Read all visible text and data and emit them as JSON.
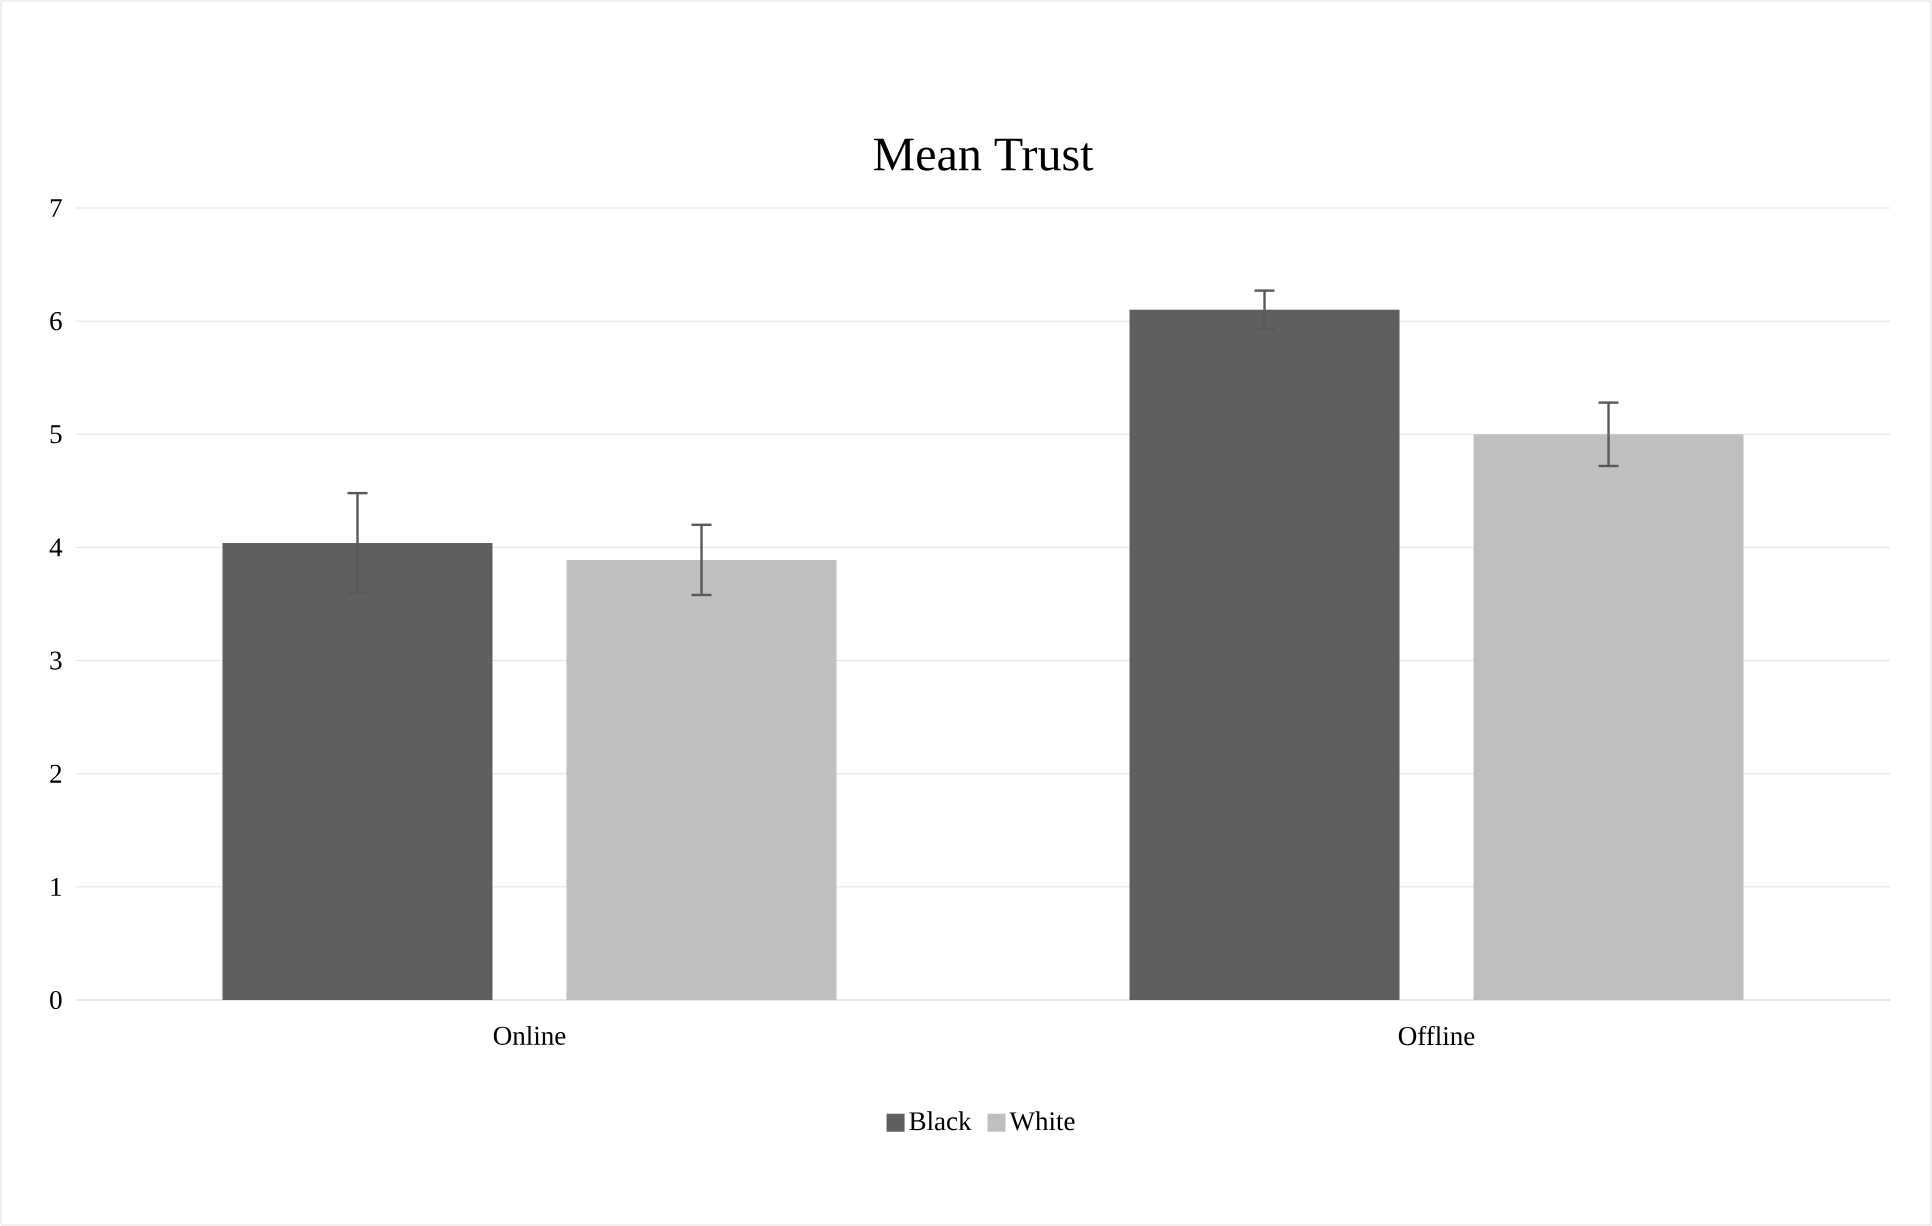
{
  "chart_data": {
    "type": "bar",
    "title": "Mean Trust",
    "categories": [
      "Online",
      "Offline"
    ],
    "series": [
      {
        "name": "Black",
        "color": "#5f5f5f",
        "values": [
          4.04,
          6.1
        ],
        "errors": [
          0.44,
          0.17
        ]
      },
      {
        "name": "White",
        "color": "#bfbfbf",
        "values": [
          3.89,
          5.0
        ],
        "errors": [
          0.31,
          0.28
        ]
      }
    ],
    "ylim": [
      0,
      7
    ],
    "yticks": [
      0,
      1,
      2,
      3,
      4,
      5,
      6,
      7
    ],
    "grid": "y",
    "legend": "bottom"
  }
}
